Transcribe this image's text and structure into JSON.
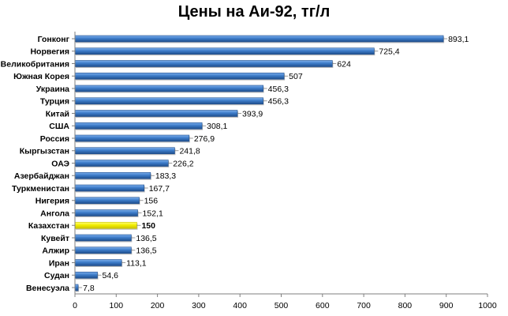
{
  "chart_data": {
    "type": "bar",
    "orientation": "horizontal",
    "title": "Цены на Аи-92, тг/л",
    "xlabel": "",
    "ylabel": "",
    "xlim": [
      0,
      1000
    ],
    "ticks": [
      "0",
      "100",
      "200",
      "300",
      "400",
      "500",
      "600",
      "700",
      "800",
      "900",
      "1000"
    ],
    "grid": false,
    "legend": "none",
    "categories": [
      "Гонконг",
      "Норвегия",
      "Великобритания",
      "Южная Корея",
      "Украина",
      "Турция",
      "Китай",
      "США",
      "Россия",
      "Кыргызстан",
      "ОАЭ",
      "Азербайджан",
      "Туркменистан",
      "Нигерия",
      "Ангола",
      "Казахстан",
      "Кувейт",
      "Алжир",
      "Иран",
      "Судан",
      "Венесуэла"
    ],
    "values": [
      893.1,
      725.4,
      624,
      507,
      456.3,
      456.3,
      393.9,
      308.1,
      276.9,
      241.8,
      226.2,
      183.3,
      167.7,
      156,
      152.1,
      150,
      136.5,
      136.5,
      113.1,
      54.6,
      7.8
    ],
    "value_labels": [
      "893,1",
      "725,4",
      "624",
      "507",
      "456,3",
      "456,3",
      "393,9",
      "308,1",
      "276,9",
      "241,8",
      "226,2",
      "183,3",
      "167,7",
      "156",
      "152,1",
      "150",
      "136,5",
      "136,5",
      "113,1",
      "54,6",
      "7,8"
    ],
    "highlight_category": "Казахстан",
    "colors": {
      "bar": "#3d7cc9",
      "bar_dark": "#1f4e8c",
      "highlight": "#f2ee00",
      "highlight_dark": "#c9c000",
      "axis": "#7f7f7f"
    }
  }
}
